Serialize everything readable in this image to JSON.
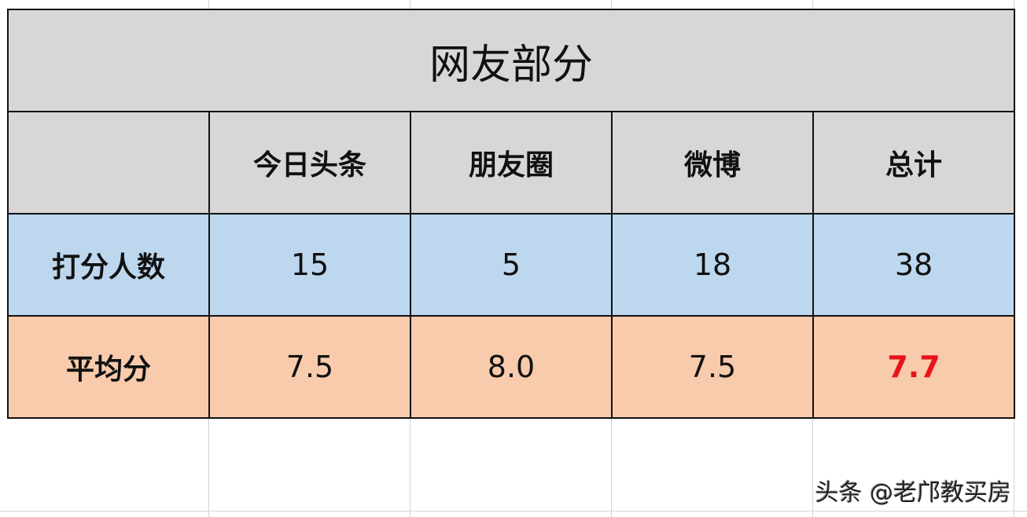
{
  "title": "网友部分",
  "columns": [
    "",
    "今日头条",
    "朋友圈",
    "微博",
    "总计"
  ],
  "rows": [
    {
      "label": "打分人数",
      "values": [
        "15",
        "5",
        "18",
        "38"
      ]
    },
    {
      "label": "平均分",
      "values": [
        "7.5",
        "8.0",
        "7.5",
        "7.7"
      ]
    }
  ],
  "highlight_color": "#e8131a",
  "watermark": "头条 @老邝教买房"
}
